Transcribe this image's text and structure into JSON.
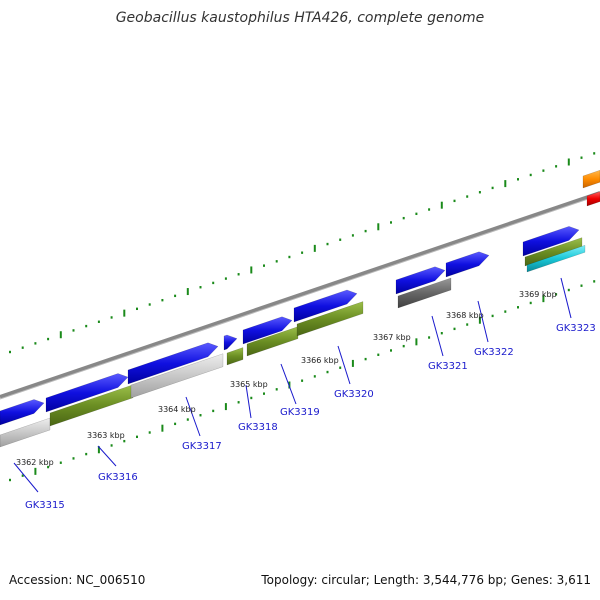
{
  "title": "Geobacillus kaustophilus HTA426, complete genome",
  "footer": {
    "accession": "Accession: NC_006510",
    "summary": "Topology: circular; Length: 3,544,776 bp; Genes: 3,611"
  },
  "colors": {
    "forward_gene": "#1010e0",
    "rna_green": "#6b8e23",
    "pseudo_light_gray": "#c8c8c8",
    "pseudo_dark_gray": "#666666",
    "misc_cyan": "#19c8d8",
    "misc_orange": "#ff8c00",
    "misc_red": "#ee0000",
    "backbone": "#888888",
    "tick": "#1a8a1a",
    "label_text": "#1a1acc"
  },
  "scale_labels": [
    "3362 kbp",
    "3363 kbp",
    "3364 kbp",
    "3365 kbp",
    "3366 kbp",
    "3367 kbp",
    "3368 kbp",
    "3369 kbp"
  ],
  "gene_labels": [
    "GK3315",
    "GK3316",
    "GK3317",
    "GK3318",
    "GK3319",
    "GK3320",
    "GK3321",
    "GK3322",
    "GK3323"
  ]
}
